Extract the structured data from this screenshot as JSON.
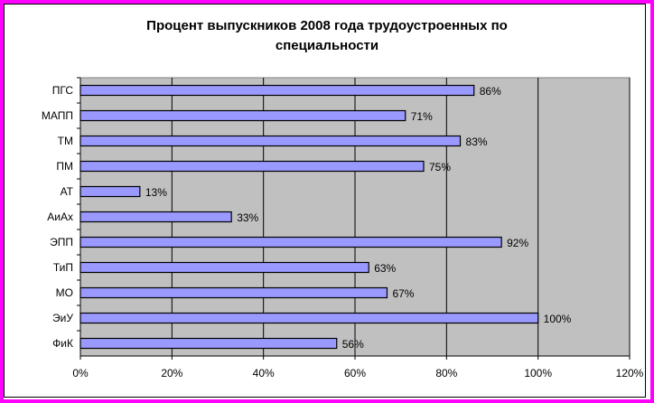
{
  "chart_data": {
    "type": "bar",
    "orientation": "horizontal",
    "title_lines": [
      "Процент выпускников 2008 года трудоустроенных  по",
      "специальности"
    ],
    "categories": [
      "ПГС",
      "МАПП",
      "ТМ",
      "ПМ",
      "АТ",
      "АиАх",
      "ЭПП",
      "ТиП",
      "МО",
      "ЭиУ",
      "ФиК"
    ],
    "values": [
      86,
      71,
      83,
      75,
      13,
      33,
      92,
      63,
      67,
      100,
      56
    ],
    "value_labels": [
      "86%",
      "71%",
      "83%",
      "75%",
      "13%",
      "33%",
      "92%",
      "63%",
      "67%",
      "100%",
      "56%"
    ],
    "x_ticks": [
      0,
      20,
      40,
      60,
      80,
      100,
      120
    ],
    "x_tick_labels": [
      "0%",
      "20%",
      "40%",
      "60%",
      "80%",
      "100%",
      "120%"
    ],
    "xlim": [
      0,
      120
    ],
    "xlabel": "",
    "ylabel": "",
    "grid": true,
    "legend": "none",
    "colors": {
      "bar_fill": "#9999ff",
      "bar_stroke": "#000000",
      "plot_background": "#c0c0c0",
      "gridline": "#000000",
      "frame_border": "#ff00ff"
    }
  }
}
